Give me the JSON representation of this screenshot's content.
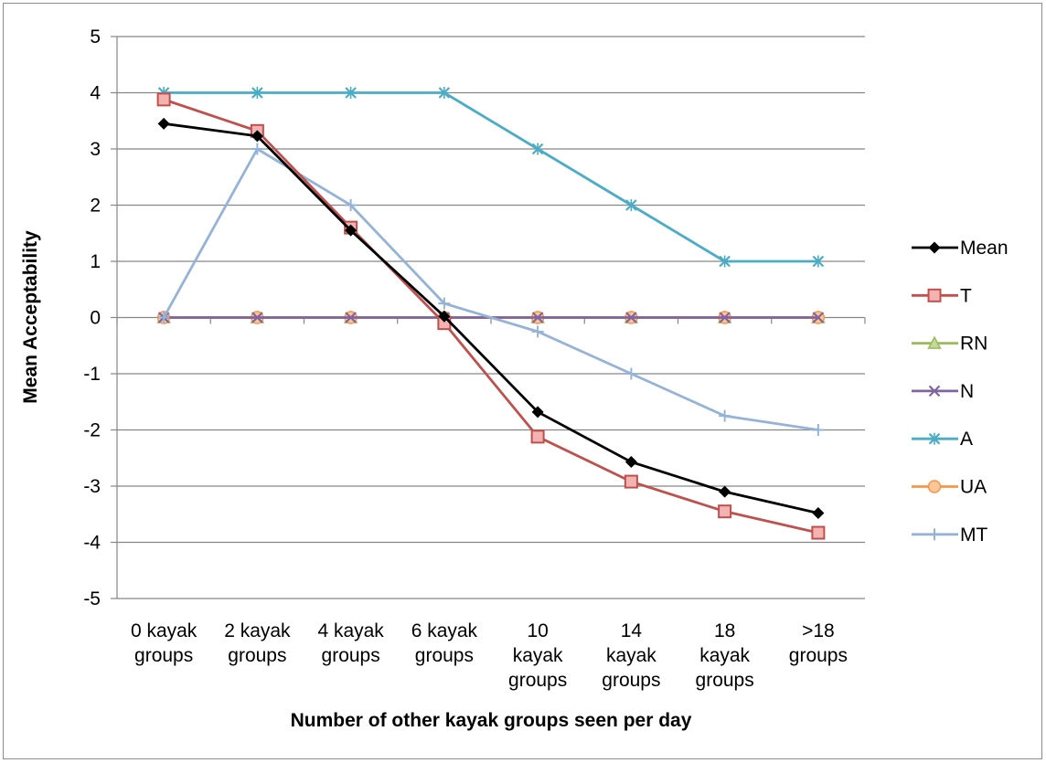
{
  "chart_data": {
    "type": "line",
    "title": "",
    "xlabel": "Number of other kayak groups seen per day",
    "ylabel": "Mean Acceptability",
    "ylim": [
      -5,
      5
    ],
    "yticks": [
      5,
      4,
      3,
      2,
      1,
      0,
      -1,
      -2,
      -3,
      -4,
      -5
    ],
    "grid": true,
    "legend_position": "right",
    "categories": [
      [
        "0 kayak",
        "groups"
      ],
      [
        "2 kayak",
        "groups"
      ],
      [
        "4 kayak",
        "groups"
      ],
      [
        "6 kayak",
        "groups"
      ],
      [
        "10",
        "kayak",
        "groups"
      ],
      [
        "14",
        "kayak",
        "groups"
      ],
      [
        "18",
        "kayak",
        "groups"
      ],
      [
        ">18",
        "groups"
      ]
    ],
    "series": [
      {
        "name": "Mean",
        "color": "#000000",
        "marker": "diamond",
        "values": [
          3.45,
          3.23,
          1.55,
          0.02,
          -1.68,
          -2.57,
          -3.1,
          -3.48
        ]
      },
      {
        "name": "T",
        "color": "#c0504d",
        "marker": "square",
        "values": [
          3.88,
          3.32,
          1.6,
          -0.1,
          -2.12,
          -2.92,
          -3.45,
          -3.83
        ]
      },
      {
        "name": "RN",
        "color": "#9bbb59",
        "marker": "triangle",
        "values": [
          0,
          0,
          0,
          0,
          0,
          0,
          0,
          0
        ]
      },
      {
        "name": "N",
        "color": "#8064a2",
        "marker": "x",
        "values": [
          0,
          0,
          0,
          0,
          0,
          0,
          0,
          0
        ]
      },
      {
        "name": "A",
        "color": "#4bacc6",
        "marker": "star",
        "values": [
          4,
          4,
          4,
          4,
          3,
          2,
          1,
          1
        ]
      },
      {
        "name": "UA",
        "color": "#f79646",
        "marker": "circle",
        "values": [
          0,
          0,
          0,
          0,
          0,
          0,
          0,
          0
        ]
      },
      {
        "name": "MT",
        "color": "#95b3d7",
        "marker": "plus",
        "values": [
          0,
          3,
          2,
          0.25,
          -0.25,
          -1,
          -1.75,
          -2
        ]
      }
    ]
  }
}
